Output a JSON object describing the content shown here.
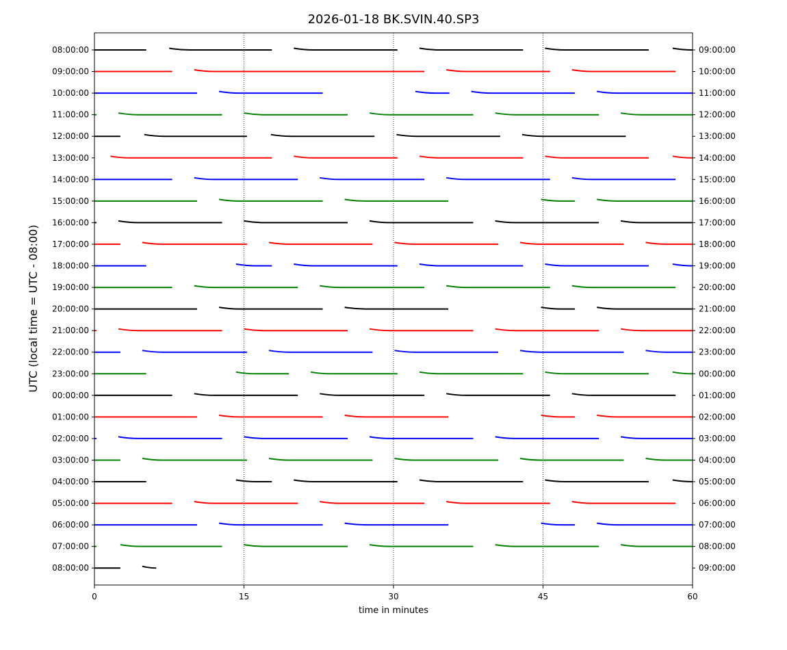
{
  "chart_data": {
    "type": "line",
    "title": "2026-01-18 BK.SVIN.40.SP3",
    "xlabel": "time in minutes",
    "ylabel": "UTC (local time = UTC - 08:00)",
    "xlim": [
      0,
      60
    ],
    "x_ticks": [
      0,
      15,
      30,
      45,
      60
    ],
    "vertical_gridlines_dotted": [
      15,
      30,
      45
    ],
    "row_colors": [
      "#000000",
      "#ff0000",
      "#0000ff",
      "#008000"
    ],
    "left_tick_labels": [
      "08:00:00",
      "09:00:00",
      "10:00:00",
      "11:00:00",
      "12:00:00",
      "13:00:00",
      "14:00:00",
      "15:00:00",
      "16:00:00",
      "17:00:00",
      "18:00:00",
      "19:00:00",
      "20:00:00",
      "21:00:00",
      "22:00:00",
      "23:00:00",
      "00:00:00",
      "01:00:00",
      "02:00:00",
      "03:00:00",
      "04:00:00",
      "05:00:00",
      "06:00:00",
      "07:00:00",
      "08:00:00"
    ],
    "right_tick_labels": [
      "09:00:00",
      "10:00:00",
      "11:00:00",
      "12:00:00",
      "13:00:00",
      "14:00:00",
      "15:00:00",
      "16:00:00",
      "17:00:00",
      "18:00:00",
      "19:00:00",
      "20:00:00",
      "21:00:00",
      "22:00:00",
      "23:00:00",
      "00:00:00",
      "01:00:00",
      "02:00:00",
      "03:00:00",
      "04:00:00",
      "05:00:00",
      "06:00:00",
      "07:00:00",
      "08:00:00",
      "09:00:00"
    ],
    "rows": [
      {
        "hour_utc": "08:00:00",
        "segments": [
          [
            0,
            5.2
          ],
          [
            7.5,
            17.8
          ],
          [
            20,
            30.4
          ],
          [
            32.6,
            43
          ],
          [
            45.2,
            55.6
          ],
          [
            58,
            60
          ]
        ]
      },
      {
        "hour_utc": "09:00:00",
        "segments": [
          [
            0,
            7.8
          ],
          [
            10,
            33.1
          ],
          [
            35.3,
            45.7
          ],
          [
            47.9,
            58.3
          ]
        ]
      },
      {
        "hour_utc": "10:00:00",
        "segments": [
          [
            0,
            10.3
          ],
          [
            12.5,
            22.9
          ],
          [
            32.2,
            35.6
          ],
          [
            37.8,
            48.2
          ],
          [
            50.4,
            60
          ]
        ]
      },
      {
        "hour_utc": "11:00:00",
        "segments": [
          [
            0,
            0.2
          ],
          [
            2.4,
            12.8
          ],
          [
            15,
            25.4
          ],
          [
            27.6,
            38
          ],
          [
            40.2,
            50.6
          ],
          [
            52.8,
            60
          ]
        ]
      },
      {
        "hour_utc": "12:00:00",
        "segments": [
          [
            0,
            2.6
          ],
          [
            5,
            15.3
          ],
          [
            17.7,
            28.1
          ],
          [
            30.3,
            40.7
          ],
          [
            42.9,
            53.3
          ]
        ]
      },
      {
        "hour_utc": "13:00:00",
        "segments": [
          [
            1.6,
            17.8
          ],
          [
            20,
            30.4
          ],
          [
            32.6,
            43
          ],
          [
            45.2,
            55.6
          ],
          [
            58,
            60
          ]
        ]
      },
      {
        "hour_utc": "14:00:00",
        "segments": [
          [
            0,
            7.8
          ],
          [
            10,
            20.4
          ],
          [
            22.6,
            33.1
          ],
          [
            35.3,
            45.7
          ],
          [
            47.9,
            58.3
          ]
        ]
      },
      {
        "hour_utc": "15:00:00",
        "segments": [
          [
            0,
            10.3
          ],
          [
            12.5,
            22.9
          ],
          [
            25.1,
            35.5
          ],
          [
            44.8,
            48.2
          ],
          [
            50.4,
            60
          ]
        ]
      },
      {
        "hour_utc": "16:00:00",
        "segments": [
          [
            0,
            0.2
          ],
          [
            2.4,
            12.8
          ],
          [
            15,
            25.4
          ],
          [
            27.6,
            38
          ],
          [
            40.2,
            50.6
          ],
          [
            52.8,
            60
          ]
        ]
      },
      {
        "hour_utc": "17:00:00",
        "segments": [
          [
            0,
            2.6
          ],
          [
            4.8,
            15.3
          ],
          [
            17.5,
            27.9
          ],
          [
            30.1,
            40.5
          ],
          [
            42.7,
            53.1
          ],
          [
            55.3,
            60
          ]
        ]
      },
      {
        "hour_utc": "18:00:00",
        "segments": [
          [
            0,
            5.2
          ],
          [
            14.2,
            17.8
          ],
          [
            20,
            30.4
          ],
          [
            32.6,
            43
          ],
          [
            45.2,
            55.6
          ],
          [
            58,
            60
          ]
        ]
      },
      {
        "hour_utc": "19:00:00",
        "segments": [
          [
            0,
            7.8
          ],
          [
            10,
            20.4
          ],
          [
            22.6,
            33.1
          ],
          [
            35.3,
            45.7
          ],
          [
            47.9,
            58.3
          ]
        ]
      },
      {
        "hour_utc": "20:00:00",
        "segments": [
          [
            0,
            10.3
          ],
          [
            12.5,
            22.9
          ],
          [
            25.1,
            35.5
          ],
          [
            44.8,
            48.2
          ],
          [
            50.4,
            60
          ]
        ]
      },
      {
        "hour_utc": "21:00:00",
        "segments": [
          [
            0,
            0.2
          ],
          [
            2.4,
            12.8
          ],
          [
            15,
            25.4
          ],
          [
            27.6,
            38
          ],
          [
            40.2,
            50.6
          ],
          [
            52.8,
            60
          ]
        ]
      },
      {
        "hour_utc": "22:00:00",
        "segments": [
          [
            0,
            2.6
          ],
          [
            4.8,
            15.3
          ],
          [
            17.5,
            27.9
          ],
          [
            30.1,
            40.5
          ],
          [
            42.7,
            53.1
          ],
          [
            55.3,
            60
          ]
        ]
      },
      {
        "hour_utc": "23:00:00",
        "segments": [
          [
            0,
            5.2
          ],
          [
            14.2,
            19.5
          ],
          [
            21.7,
            30.4
          ],
          [
            32.6,
            43
          ],
          [
            45.2,
            55.6
          ],
          [
            58,
            60
          ]
        ]
      },
      {
        "hour_utc": "00:00:00",
        "segments": [
          [
            0,
            7.8
          ],
          [
            10,
            20.4
          ],
          [
            22.6,
            33.1
          ],
          [
            35.3,
            45.7
          ],
          [
            47.9,
            58.3
          ]
        ]
      },
      {
        "hour_utc": "01:00:00",
        "segments": [
          [
            0,
            10.3
          ],
          [
            12.5,
            22.9
          ],
          [
            25.1,
            35.5
          ],
          [
            44.8,
            48.2
          ],
          [
            50.4,
            60
          ]
        ]
      },
      {
        "hour_utc": "02:00:00",
        "segments": [
          [
            0,
            0.2
          ],
          [
            2.4,
            12.8
          ],
          [
            15,
            25.4
          ],
          [
            27.6,
            38
          ],
          [
            40.2,
            50.6
          ],
          [
            52.8,
            60
          ]
        ]
      },
      {
        "hour_utc": "03:00:00",
        "segments": [
          [
            0,
            2.6
          ],
          [
            4.8,
            15.3
          ],
          [
            17.5,
            27.9
          ],
          [
            30.1,
            40.5
          ],
          [
            42.7,
            53.1
          ],
          [
            55.3,
            60
          ]
        ]
      },
      {
        "hour_utc": "04:00:00",
        "segments": [
          [
            0,
            5.2
          ],
          [
            14.2,
            17.8
          ],
          [
            20,
            30.4
          ],
          [
            32.6,
            43
          ],
          [
            45.2,
            55.6
          ],
          [
            58,
            60
          ]
        ]
      },
      {
        "hour_utc": "05:00:00",
        "segments": [
          [
            0,
            7.8
          ],
          [
            10,
            20.4
          ],
          [
            22.6,
            33.1
          ],
          [
            35.3,
            45.7
          ],
          [
            47.9,
            58.3
          ]
        ]
      },
      {
        "hour_utc": "06:00:00",
        "segments": [
          [
            0,
            10.3
          ],
          [
            12.5,
            22.9
          ],
          [
            25.1,
            35.5
          ],
          [
            44.8,
            48.2
          ],
          [
            50.4,
            60
          ]
        ]
      },
      {
        "hour_utc": "07:00:00",
        "segments": [
          [
            0,
            0.2
          ],
          [
            2.6,
            12.8
          ],
          [
            15,
            25.4
          ],
          [
            27.6,
            38
          ],
          [
            40.2,
            50.6
          ],
          [
            52.8,
            60
          ]
        ]
      },
      {
        "hour_utc": "08:00:00",
        "segments": [
          [
            0,
            2.6
          ],
          [
            4.8,
            6.2
          ]
        ]
      }
    ]
  }
}
